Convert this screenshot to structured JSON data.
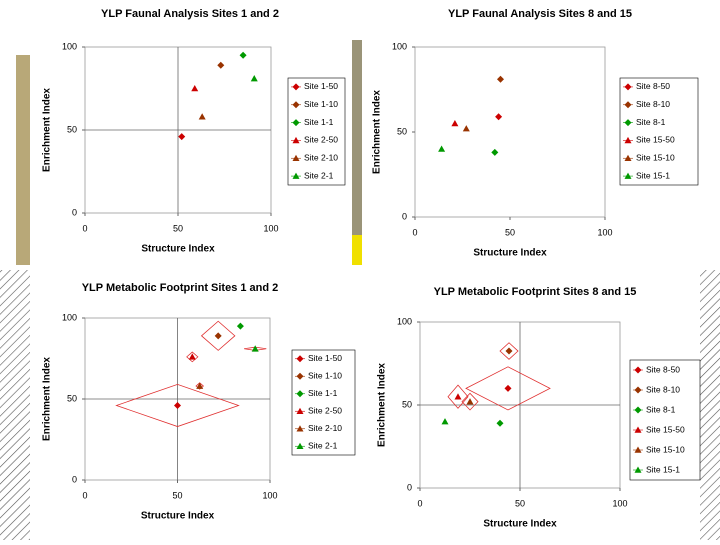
{
  "chart_data": [
    {
      "type": "scatter",
      "title": "YLP Faunal Analysis Sites 1 and 2",
      "xlabel": "Structure Index",
      "ylabel": "Enrichment Index",
      "xlim": [
        0,
        100
      ],
      "ylim": [
        0,
        100
      ],
      "xticks": [
        0,
        50,
        100
      ],
      "yticks": [
        0,
        50,
        100
      ],
      "reference_lines": {
        "x": 50,
        "y": 50
      },
      "series": [
        {
          "name": "Site 1-50",
          "color": "#cc0000",
          "marker": "diamond",
          "x": [
            52
          ],
          "values": [
            46
          ]
        },
        {
          "name": "Site 1-10",
          "color": "#993300",
          "marker": "diamond",
          "x": [
            73
          ],
          "values": [
            89
          ]
        },
        {
          "name": "Site 1-1",
          "color": "#009900",
          "marker": "diamond",
          "x": [
            85
          ],
          "values": [
            95
          ]
        },
        {
          "name": "Site 2-50",
          "color": "#cc0000",
          "marker": "triangle",
          "x": [
            59
          ],
          "values": [
            75
          ]
        },
        {
          "name": "Site 2-10",
          "color": "#993300",
          "marker": "triangle",
          "x": [
            63
          ],
          "values": [
            58
          ]
        },
        {
          "name": "Site 2-1",
          "color": "#009900",
          "marker": "triangle",
          "x": [
            91
          ],
          "values": [
            81
          ]
        }
      ]
    },
    {
      "type": "scatter",
      "title": "YLP Faunal Analysis Sites 8 and 15",
      "xlabel": "Structure Index",
      "ylabel": "Enrichment Index",
      "xlim": [
        0,
        100
      ],
      "ylim": [
        0,
        100
      ],
      "xticks": [
        0,
        50,
        100
      ],
      "yticks": [
        0,
        50,
        100
      ],
      "series": [
        {
          "name": "Site 8-50",
          "color": "#cc0000",
          "marker": "diamond",
          "x": [
            44
          ],
          "values": [
            59
          ]
        },
        {
          "name": "Site 8-10",
          "color": "#993300",
          "marker": "diamond",
          "x": [
            45
          ],
          "values": [
            81
          ]
        },
        {
          "name": "Site 8-1",
          "color": "#009900",
          "marker": "diamond",
          "x": [
            42
          ],
          "values": [
            38
          ]
        },
        {
          "name": "Site 15-50",
          "color": "#cc0000",
          "marker": "triangle",
          "x": [
            21
          ],
          "values": [
            55
          ]
        },
        {
          "name": "Site 15-10",
          "color": "#993300",
          "marker": "triangle",
          "x": [
            27
          ],
          "values": [
            52
          ]
        },
        {
          "name": "Site 15-1",
          "color": "#009900",
          "marker": "triangle",
          "x": [
            14
          ],
          "values": [
            40
          ]
        }
      ]
    },
    {
      "type": "scatter",
      "title": "YLP Metabolic Footprint Sites 1 and 2",
      "xlabel": "Structure Index",
      "ylabel": "Enrichment Index",
      "xlim": [
        0,
        100
      ],
      "ylim": [
        0,
        100
      ],
      "xticks": [
        0,
        50,
        100
      ],
      "yticks": [
        0,
        50,
        100
      ],
      "reference_lines": {
        "x": 50,
        "y": 50
      },
      "series": [
        {
          "name": "Site 1-50",
          "color": "#cc0000",
          "marker": "diamond",
          "x": [
            50
          ],
          "values": [
            46
          ],
          "footprint_x": [
            33
          ],
          "footprint_y": [
            13
          ]
        },
        {
          "name": "Site 1-10",
          "color": "#993300",
          "marker": "diamond",
          "x": [
            72
          ],
          "values": [
            89
          ],
          "footprint_x": [
            9
          ],
          "footprint_y": [
            9
          ]
        },
        {
          "name": "Site 1-1",
          "color": "#009900",
          "marker": "diamond",
          "x": [
            84
          ],
          "values": [
            95
          ],
          "footprint_x": [
            null
          ],
          "footprint_y": [
            null
          ]
        },
        {
          "name": "Site 2-50",
          "color": "#cc0000",
          "marker": "triangle",
          "x": [
            58
          ],
          "values": [
            76
          ],
          "footprint_x": [
            3
          ],
          "footprint_y": [
            3
          ]
        },
        {
          "name": "Site 2-10",
          "color": "#993300",
          "marker": "triangle",
          "x": [
            62
          ],
          "values": [
            58
          ],
          "footprint_x": [
            2
          ],
          "footprint_y": [
            2
          ]
        },
        {
          "name": "Site 2-1",
          "color": "#009900",
          "marker": "triangle",
          "x": [
            92
          ],
          "values": [
            81
          ],
          "footprint_x": [
            6
          ],
          "footprint_y": [
            1
          ]
        }
      ]
    },
    {
      "type": "scatter",
      "title": "YLP Metabolic Footprint Sites 8 and 15",
      "xlabel": "Structure Index",
      "ylabel": "Enrichment Index",
      "xlim": [
        0,
        100
      ],
      "ylim": [
        0,
        100
      ],
      "xticks": [
        0,
        50,
        100
      ],
      "yticks": [
        0,
        50,
        100
      ],
      "reference_lines": {
        "x": 50,
        "y": 50
      },
      "series": [
        {
          "name": "Site 8-50",
          "color": "#cc0000",
          "marker": "diamond",
          "x": [
            44
          ],
          "values": [
            60
          ],
          "footprint_x": [
            21
          ],
          "footprint_y": [
            13
          ]
        },
        {
          "name": "Site 8-10",
          "color": "#993300",
          "marker": "diamond",
          "x": [
            44.5
          ],
          "values": [
            82.5
          ],
          "footprint_x": [
            4.5
          ],
          "footprint_y": [
            5
          ]
        },
        {
          "name": "Site 8-1",
          "color": "#009900",
          "marker": "diamond",
          "x": [
            40
          ],
          "values": [
            39
          ],
          "footprint_x": [
            null
          ],
          "footprint_y": [
            null
          ]
        },
        {
          "name": "Site 15-50",
          "color": "#cc0000",
          "marker": "triangle",
          "x": [
            19
          ],
          "values": [
            55
          ],
          "footprint_x": [
            5
          ],
          "footprint_y": [
            7
          ]
        },
        {
          "name": "Site 15-10",
          "color": "#993300",
          "marker": "triangle",
          "x": [
            25
          ],
          "values": [
            52
          ],
          "footprint_x": [
            4
          ],
          "footprint_y": [
            5
          ]
        },
        {
          "name": "Site 15-1",
          "color": "#009900",
          "marker": "triangle",
          "x": [
            12.5
          ],
          "values": [
            40
          ],
          "footprint_x": [
            null
          ],
          "footprint_y": [
            null
          ]
        }
      ]
    }
  ]
}
